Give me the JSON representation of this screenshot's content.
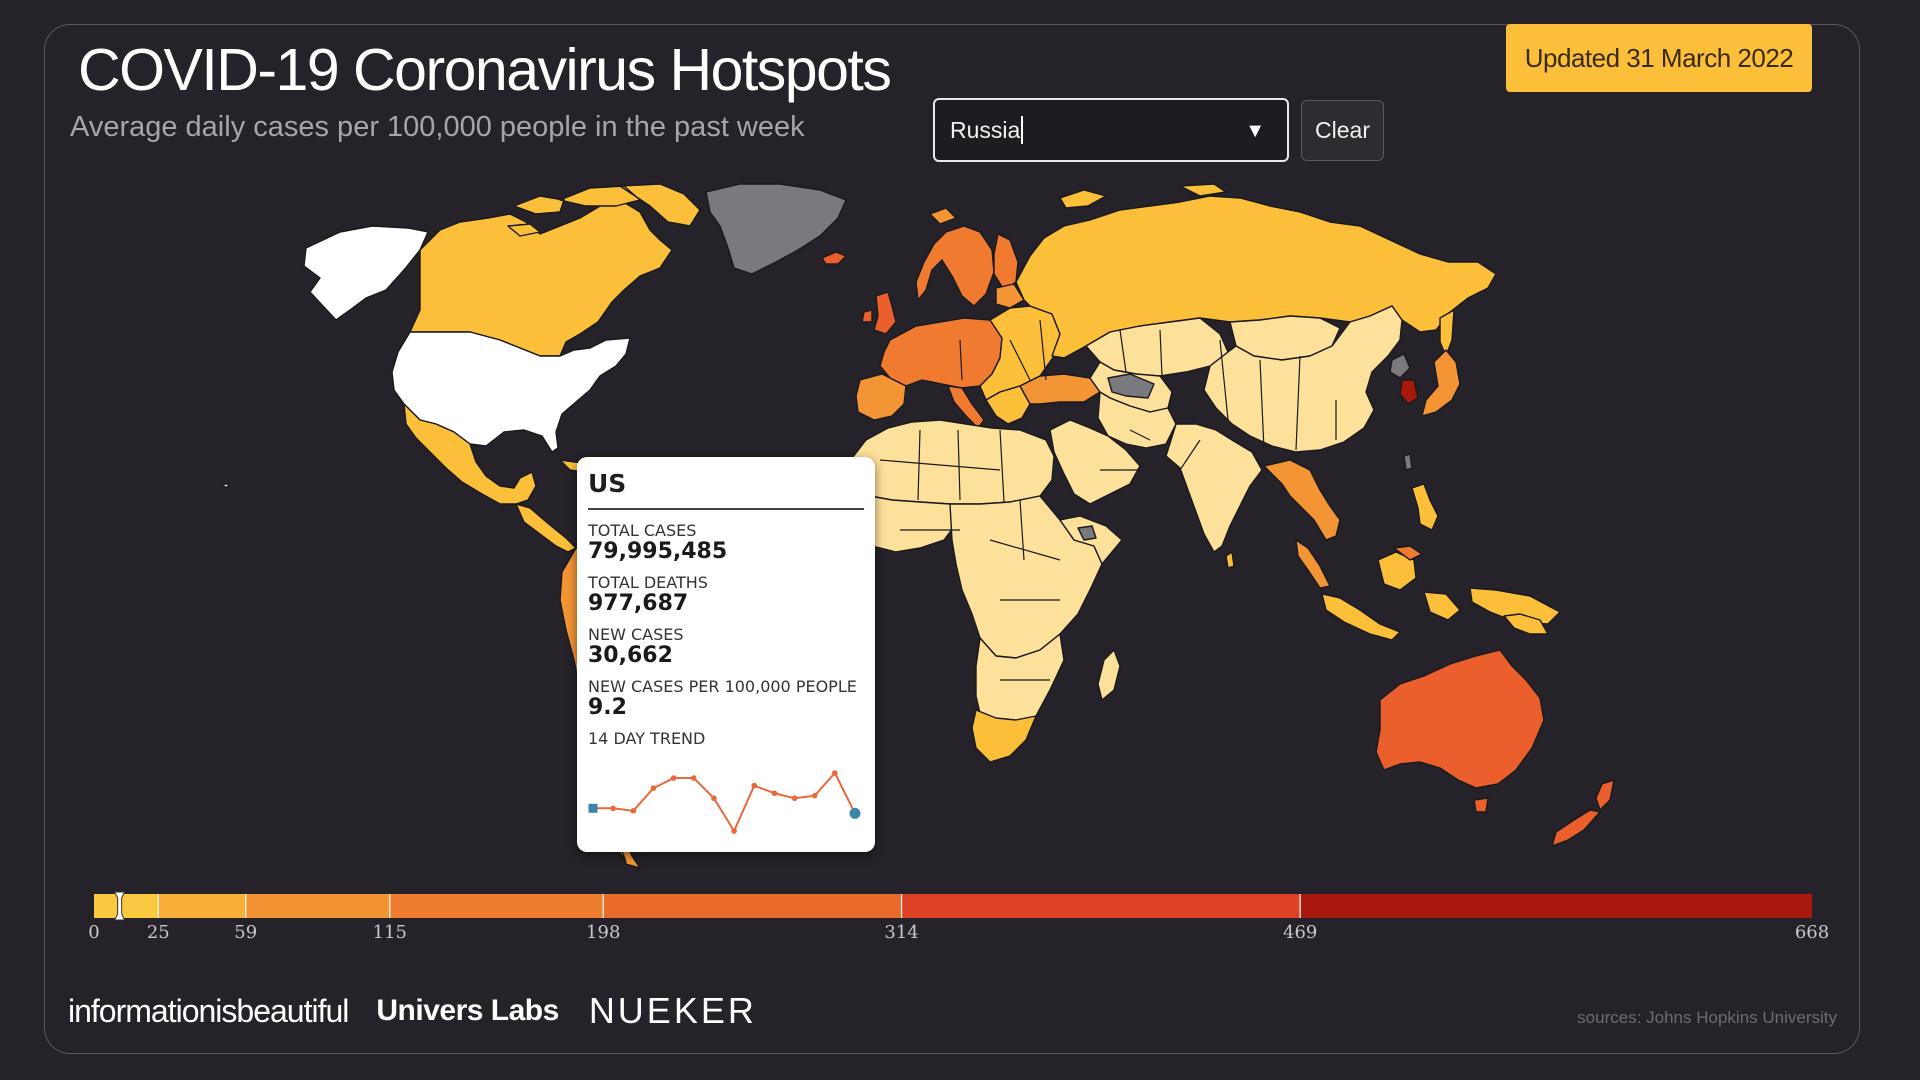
{
  "header": {
    "title": "COVID-19 Coronavirus Hotspots",
    "subtitle": "Average daily cases per 100,000 people in the past week",
    "updated": "Updated 31 March 2022"
  },
  "search": {
    "selected_value": "Russia",
    "clear_label": "Clear"
  },
  "colors": {
    "background": "#252329",
    "no_data": "#7a797e",
    "highlight_white": "#ffffff",
    "scale": [
      "#fde09a",
      "#fbc64a",
      "#f8b33a",
      "#f49535",
      "#f07b30",
      "#ea5f2b",
      "#dc3c22",
      "#a8180c"
    ]
  },
  "map": {
    "highlighted": [
      "US",
      "Alaska"
    ],
    "selected_search": "Russia",
    "projection": "equirectangular"
  },
  "tooltip": {
    "country": "US",
    "stats": [
      {
        "label": "TOTAL CASES",
        "value": "79,995,485"
      },
      {
        "label": "TOTAL DEATHS",
        "value": "977,687"
      },
      {
        "label": "NEW CASES",
        "value": "30,662"
      },
      {
        "label": "NEW CASES PER 100,000 PEOPLE",
        "value": "9.2"
      }
    ],
    "trend_label": "14 DAY TREND",
    "trend_values": [
      9.6,
      9.6,
      9.4,
      11.2,
      12.0,
      12.0,
      10.4,
      7.8,
      11.4,
      10.8,
      10.4,
      10.6,
      12.4,
      9.2
    ]
  },
  "legend": {
    "ticks": [
      0,
      25,
      59,
      115,
      198,
      314,
      469,
      668
    ],
    "tick_labels": [
      "0",
      "25",
      "59",
      "115",
      "198",
      "314",
      "469",
      "668"
    ],
    "marker_value": 9.2
  },
  "footer": {
    "logos": [
      "informationisbeautiful",
      "Univers Labs",
      "NUEKER"
    ],
    "sources": "sources: Johns Hopkins University"
  }
}
